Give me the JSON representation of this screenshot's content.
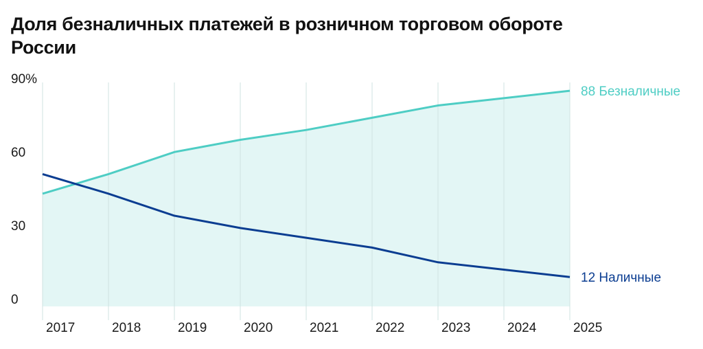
{
  "chart_data": {
    "type": "area",
    "title": "Доля безналичных платежей в розничном торговом обороте России",
    "x": [
      "2017",
      "2018",
      "2019",
      "2020",
      "2021",
      "2022",
      "2023",
      "2024",
      "2025"
    ],
    "series": [
      {
        "name": "Безналичные",
        "values": [
          46,
          54,
          63,
          68,
          72,
          77,
          82,
          85,
          88
        ],
        "end_label": "88 Безналичные",
        "color": "#4ecdc4",
        "fill": "#e3f6f5"
      },
      {
        "name": "Наличные",
        "values": [
          54,
          46,
          37,
          32,
          28,
          24,
          18,
          15,
          12
        ],
        "end_label": "12 Наличные",
        "color": "#0b3d91"
      }
    ],
    "y_ticks": [
      "90%",
      "60",
      "30",
      "0"
    ],
    "y_tick_values": [
      90,
      60,
      30,
      0
    ],
    "ylim": [
      0,
      90
    ],
    "grid": "vertical"
  }
}
